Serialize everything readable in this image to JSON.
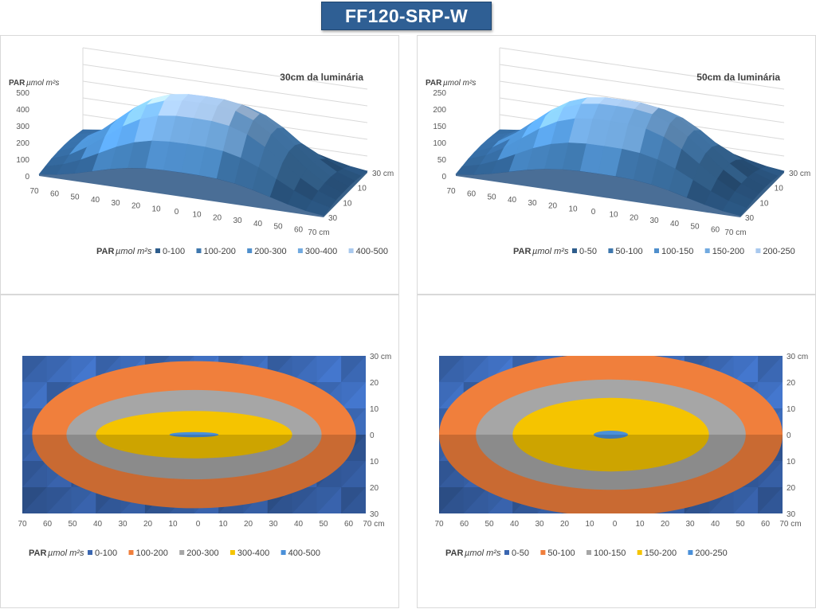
{
  "page": {
    "title": "FF120-SRP-W"
  },
  "chart_data": [
    {
      "id": "s30",
      "type": "surface-3d",
      "title": "30cm da luminária",
      "z_label": "PAR",
      "z_unit": "µmol m²s",
      "z_ticks": [
        "0",
        "100",
        "200",
        "300",
        "400",
        "500"
      ],
      "z_max": 500,
      "x_ticks": [
        "70",
        "60",
        "50",
        "40",
        "30",
        "20",
        "10",
        "0",
        "10",
        "20",
        "30",
        "40",
        "50",
        "60",
        "70 cm"
      ],
      "y_ticks": [
        "30 cm",
        "10",
        "10",
        "30"
      ],
      "peak": 450,
      "legend_label": "PAR",
      "legend_unit": "µmol m²s",
      "legend": [
        "0-100",
        "100-200",
        "200-300",
        "300-400",
        "400-500"
      ],
      "colors": [
        "#2e5d8c",
        "#3f78ae",
        "#4f8fcc",
        "#72aae0",
        "#a9c9ee"
      ]
    },
    {
      "id": "s50",
      "type": "surface-3d",
      "title": "50cm da luminária",
      "z_label": "PAR",
      "z_unit": "µmol m²s",
      "z_ticks": [
        "0",
        "50",
        "100",
        "150",
        "200",
        "250"
      ],
      "z_max": 250,
      "x_ticks": [
        "70",
        "60",
        "50",
        "40",
        "30",
        "20",
        "10",
        "0",
        "10",
        "20",
        "30",
        "40",
        "50",
        "60",
        "70 cm"
      ],
      "y_ticks": [
        "30 cm",
        "10",
        "10",
        "30"
      ],
      "peak": 215,
      "legend_label": "PAR",
      "legend_unit": "µmol m²s",
      "legend": [
        "0-50",
        "50-100",
        "100-150",
        "150-200",
        "200-250"
      ],
      "colors": [
        "#2e5d8c",
        "#3f78ae",
        "#4f8fcc",
        "#72aae0",
        "#a9c9ee"
      ]
    },
    {
      "id": "c30",
      "type": "contour",
      "x_range": [
        -70,
        70
      ],
      "y_range": [
        -30,
        30
      ],
      "x_ticks": [
        "70",
        "60",
        "50",
        "40",
        "30",
        "20",
        "10",
        "0",
        "10",
        "20",
        "30",
        "40",
        "50",
        "60",
        "70 cm"
      ],
      "y_ticks": [
        "30 cm",
        "20",
        "10",
        "0",
        "10",
        "20",
        "30"
      ],
      "legend_label": "PAR",
      "legend_unit": "µmol m²s",
      "legend": [
        "0-100",
        "100-200",
        "200-300",
        "300-400",
        "400-500"
      ],
      "colors": [
        "#3a66b0",
        "#f07f3c",
        "#a6a6a6",
        "#f5c400",
        "#4a90d9"
      ],
      "regions": [
        {
          "range": "100-200",
          "rx": 66,
          "ry": 28
        },
        {
          "range": "200-300",
          "rx": 52,
          "ry": 17
        },
        {
          "range": "300-400",
          "rx": 40,
          "ry": 9
        },
        {
          "range": "400-500",
          "rx": 10,
          "ry": 1
        }
      ]
    },
    {
      "id": "c50",
      "type": "contour",
      "x_range": [
        -70,
        70
      ],
      "y_range": [
        -30,
        30
      ],
      "x_ticks": [
        "70",
        "60",
        "50",
        "40",
        "30",
        "20",
        "10",
        "0",
        "10",
        "20",
        "30",
        "40",
        "50",
        "60",
        "70 cm"
      ],
      "y_ticks": [
        "30 cm",
        "20",
        "10",
        "0",
        "10",
        "20",
        "30"
      ],
      "legend_label": "PAR",
      "legend_unit": "µmol m²s",
      "legend": [
        "0-50",
        "50-100",
        "100-150",
        "150-200",
        "200-250"
      ],
      "colors": [
        "#3a66b0",
        "#f07f3c",
        "#a6a6a6",
        "#f5c400",
        "#4a90d9"
      ],
      "regions": [
        {
          "range": "50-100",
          "rx": 70,
          "ry": 31
        },
        {
          "range": "100-150",
          "rx": 55,
          "ry": 21
        },
        {
          "range": "150-200",
          "rx": 40,
          "ry": 14
        },
        {
          "range": "200-250",
          "rx": 7,
          "ry": 1.5
        }
      ]
    }
  ]
}
